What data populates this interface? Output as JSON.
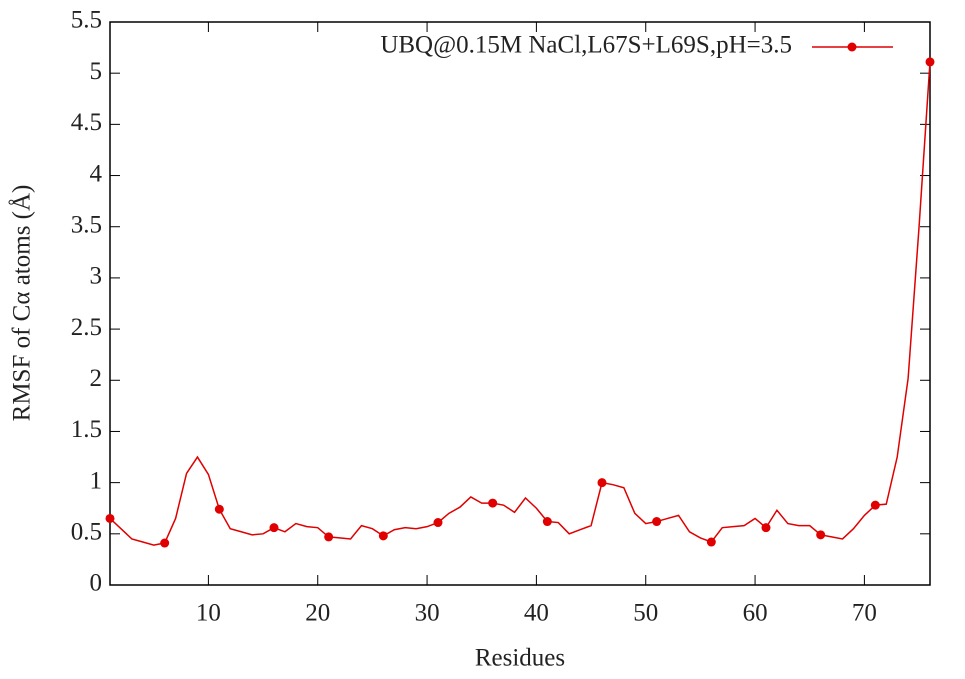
{
  "chart_data": {
    "type": "line",
    "x_label": "Residues",
    "y_label": "RMSF of Cα atoms (Å)",
    "x": [
      1,
      2,
      3,
      4,
      5,
      6,
      7,
      8,
      9,
      10,
      11,
      12,
      13,
      14,
      15,
      16,
      17,
      18,
      19,
      20,
      21,
      22,
      23,
      24,
      25,
      26,
      27,
      28,
      29,
      30,
      31,
      32,
      33,
      34,
      35,
      36,
      37,
      38,
      39,
      40,
      41,
      42,
      43,
      44,
      45,
      46,
      47,
      48,
      49,
      50,
      51,
      52,
      53,
      54,
      55,
      56,
      57,
      58,
      59,
      60,
      61,
      62,
      63,
      64,
      65,
      66,
      67,
      68,
      69,
      70,
      71,
      72,
      73,
      74,
      75,
      76
    ],
    "series": [
      {
        "name": "UBQ@0.15M NaCl,L67S+L69S,pH=3.5",
        "color": "#e00000",
        "marker_every": 5,
        "values": [
          0.65,
          0.55,
          0.45,
          0.42,
          0.39,
          0.41,
          0.65,
          1.09,
          1.25,
          1.08,
          0.74,
          0.55,
          0.52,
          0.49,
          0.5,
          0.56,
          0.52,
          0.6,
          0.57,
          0.56,
          0.47,
          0.46,
          0.45,
          0.58,
          0.55,
          0.48,
          0.54,
          0.56,
          0.55,
          0.57,
          0.61,
          0.7,
          0.76,
          0.86,
          0.8,
          0.8,
          0.78,
          0.71,
          0.85,
          0.75,
          0.62,
          0.61,
          0.5,
          0.54,
          0.58,
          1.0,
          0.98,
          0.95,
          0.7,
          0.6,
          0.62,
          0.65,
          0.68,
          0.52,
          0.46,
          0.42,
          0.56,
          0.57,
          0.58,
          0.65,
          0.56,
          0.73,
          0.6,
          0.58,
          0.58,
          0.49,
          0.47,
          0.45,
          0.55,
          0.68,
          0.78,
          0.79,
          1.25,
          2.02,
          3.5,
          5.11
        ]
      }
    ],
    "xlim": [
      1,
      76
    ],
    "xticks": [
      10,
      20,
      30,
      40,
      50,
      60,
      70
    ],
    "ylim": [
      0,
      5.5
    ],
    "yticks": [
      0,
      0.5,
      1,
      1.5,
      2,
      2.5,
      3,
      3.5,
      4,
      4.5,
      5,
      5.5
    ],
    "grid": false,
    "legend": "top-right"
  }
}
